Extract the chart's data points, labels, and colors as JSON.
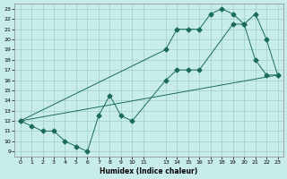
{
  "xlabel": "Humidex (Indice chaleur)",
  "bg_color": "#c8ece9",
  "grid_color": "#9ececa",
  "line_color": "#1a6b5a",
  "xlim": [
    -0.5,
    23.5
  ],
  "ylim": [
    8.5,
    23.5
  ],
  "xticks": [
    0,
    1,
    2,
    3,
    4,
    5,
    6,
    7,
    8,
    9,
    10,
    11,
    13,
    14,
    15,
    16,
    17,
    18,
    19,
    20,
    21,
    22,
    23
  ],
  "yticks": [
    9,
    10,
    11,
    12,
    13,
    14,
    15,
    16,
    17,
    18,
    19,
    20,
    21,
    22,
    23
  ],
  "line_diagonal": {
    "x": [
      0,
      23
    ],
    "y": [
      12,
      16.5
    ]
  },
  "line_zigzag": {
    "x": [
      0,
      1,
      2,
      3,
      4,
      5,
      6,
      7,
      8,
      9,
      10,
      13,
      14,
      15,
      16,
      19,
      20,
      21,
      22,
      23
    ],
    "y": [
      12,
      11.5,
      11,
      11,
      10,
      9.5,
      9,
      12.5,
      14.5,
      12.5,
      12,
      16,
      17,
      17,
      17,
      21.5,
      21.5,
      18,
      16.5,
      16.5
    ]
  },
  "line_upper": {
    "x": [
      0,
      13,
      14,
      15,
      16,
      17,
      18,
      19,
      20,
      21,
      22,
      23
    ],
    "y": [
      12,
      19,
      21,
      21,
      21,
      22.5,
      23,
      22.5,
      21.5,
      22.5,
      20,
      16.5
    ]
  },
  "markersize": 2.5
}
